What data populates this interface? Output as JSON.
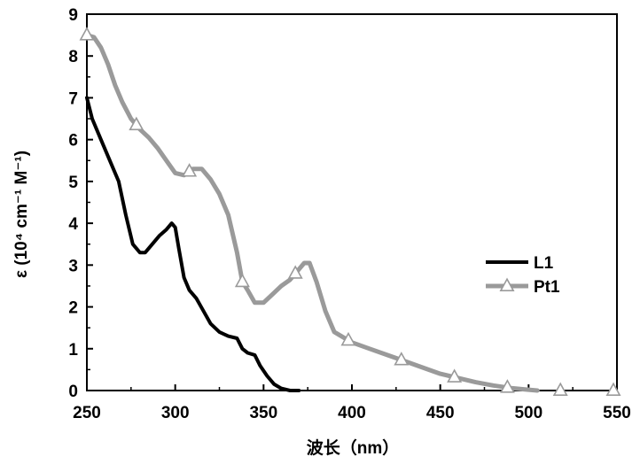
{
  "chart_data": {
    "type": "line",
    "title": "",
    "xlabel": "波长（nm）",
    "ylabel": "ε (10⁴ cm⁻¹ M⁻¹)",
    "xlim": [
      250,
      550
    ],
    "ylim": [
      0,
      9
    ],
    "xticks": [
      250,
      300,
      350,
      400,
      450,
      500,
      550
    ],
    "yticks": [
      0,
      1,
      2,
      3,
      4,
      5,
      6,
      7,
      8,
      9
    ],
    "grid": false,
    "legend": "right",
    "series": [
      {
        "name": "L1",
        "color": "#000000",
        "marker": "none",
        "x": [
          250,
          253,
          258,
          263,
          268,
          272,
          276,
          280,
          283,
          287,
          291,
          295,
          298,
          300,
          302,
          305,
          308,
          312,
          316,
          320,
          325,
          330,
          335,
          338,
          341,
          345,
          348,
          352,
          356,
          360,
          365,
          370
        ],
        "y": [
          7.0,
          6.5,
          6.0,
          5.5,
          5.0,
          4.2,
          3.5,
          3.3,
          3.3,
          3.5,
          3.7,
          3.85,
          4.0,
          3.9,
          3.4,
          2.7,
          2.4,
          2.2,
          1.9,
          1.6,
          1.4,
          1.3,
          1.25,
          1.0,
          0.9,
          0.85,
          0.6,
          0.35,
          0.15,
          0.05,
          0.0,
          0.0
        ]
      },
      {
        "name": "Pt1",
        "color": "#9a9a9a",
        "marker": "triangle",
        "marker_x": [
          250,
          278,
          308,
          338,
          368,
          398,
          428,
          458,
          488,
          518,
          548
        ],
        "x": [
          250,
          254,
          258,
          262,
          266,
          270,
          275,
          280,
          285,
          290,
          295,
          300,
          305,
          310,
          315,
          320,
          325,
          330,
          335,
          338,
          341,
          345,
          350,
          355,
          360,
          365,
          370,
          373,
          376,
          380,
          385,
          390,
          400,
          410,
          420,
          430,
          440,
          450,
          460,
          470,
          480,
          490,
          500,
          505
        ],
        "y": [
          8.5,
          8.45,
          8.2,
          7.8,
          7.3,
          6.9,
          6.5,
          6.25,
          6.05,
          5.8,
          5.5,
          5.2,
          5.15,
          5.3,
          5.3,
          5.05,
          4.7,
          4.2,
          3.3,
          2.6,
          2.4,
          2.1,
          2.1,
          2.3,
          2.5,
          2.65,
          2.9,
          3.05,
          3.05,
          2.6,
          1.9,
          1.4,
          1.15,
          1.0,
          0.85,
          0.7,
          0.55,
          0.4,
          0.3,
          0.2,
          0.12,
          0.06,
          0.02,
          0.0
        ]
      }
    ]
  }
}
